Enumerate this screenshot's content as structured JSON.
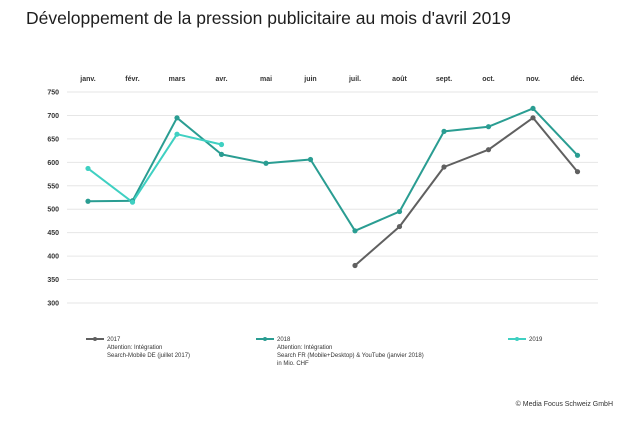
{
  "page": {
    "title": "Développement de la pression publicitaire au mois d'avril 2019",
    "source": "© Media Focus Schweiz GmbH"
  },
  "chart_data": {
    "type": "line",
    "title": "Développement de la pression publicitaire au mois d'avril 2019",
    "xlabel": "",
    "ylabel": "",
    "categories": [
      "janv.",
      "févr.",
      "mars",
      "avr.",
      "mai",
      "juin",
      "juil.",
      "août",
      "sept.",
      "oct.",
      "nov.",
      "déc."
    ],
    "y_ticks": [
      750,
      700,
      650,
      600,
      550,
      500,
      450,
      400,
      350,
      300
    ],
    "ylim": [
      300,
      750
    ],
    "grid": true,
    "legend_position": "bottom",
    "series": [
      {
        "name": "2017",
        "color": "#606060",
        "note": [
          "Attention: Intégration",
          "Search-Mobile DE (juillet 2017)"
        ],
        "values": [
          null,
          null,
          null,
          null,
          null,
          null,
          380,
          463,
          590,
          627,
          695,
          580
        ]
      },
      {
        "name": "2018",
        "color": "#2a9d92",
        "note": [
          "Attention: Intégration",
          "Search FR (Mobile+Desktop) & YouTube (janvier 2018)",
          "in Mio. CHF"
        ],
        "values": [
          517,
          518,
          695,
          617,
          598,
          606,
          454,
          495,
          666,
          676,
          715,
          615
        ]
      },
      {
        "name": "2019",
        "color": "#3fd0c2",
        "note": [],
        "values": [
          587,
          515,
          660,
          638,
          null,
          null,
          null,
          null,
          null,
          null,
          null,
          null
        ]
      }
    ]
  }
}
